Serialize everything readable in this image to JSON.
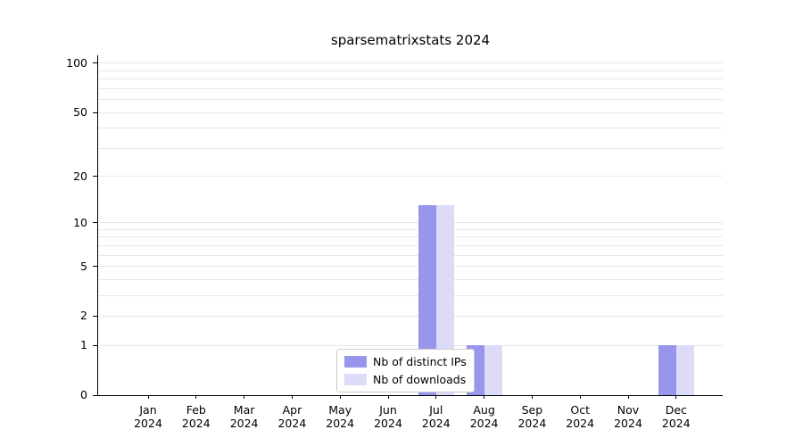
{
  "chart_data": {
    "type": "bar",
    "title": "sparsematrixstats 2024",
    "categories": [
      "Jan",
      "Feb",
      "Mar",
      "Apr",
      "May",
      "Jun",
      "Jul",
      "Aug",
      "Sep",
      "Oct",
      "Nov",
      "Dec"
    ],
    "category_year": "2024",
    "series": [
      {
        "name": "Nb of distinct IPs",
        "color": "#9795ec",
        "values": [
          0,
          0,
          0,
          0,
          0,
          0,
          13,
          1,
          0,
          0,
          0,
          1
        ]
      },
      {
        "name": "Nb of downloads",
        "color": "#dcdbf8",
        "values": [
          0,
          0,
          0,
          0,
          0,
          0,
          13,
          1,
          0,
          0,
          0,
          1
        ]
      }
    ],
    "yticks": [
      0,
      1,
      2,
      5,
      10,
      20,
      50,
      100
    ],
    "scale": "log1p",
    "ylim": [
      0,
      112
    ],
    "grid": "horizontal-minor-log",
    "legend_position": "bottom-center-inside",
    "colors": {
      "axis": "#000000",
      "grid": "#e8e8e8",
      "background": "#ffffff"
    }
  }
}
